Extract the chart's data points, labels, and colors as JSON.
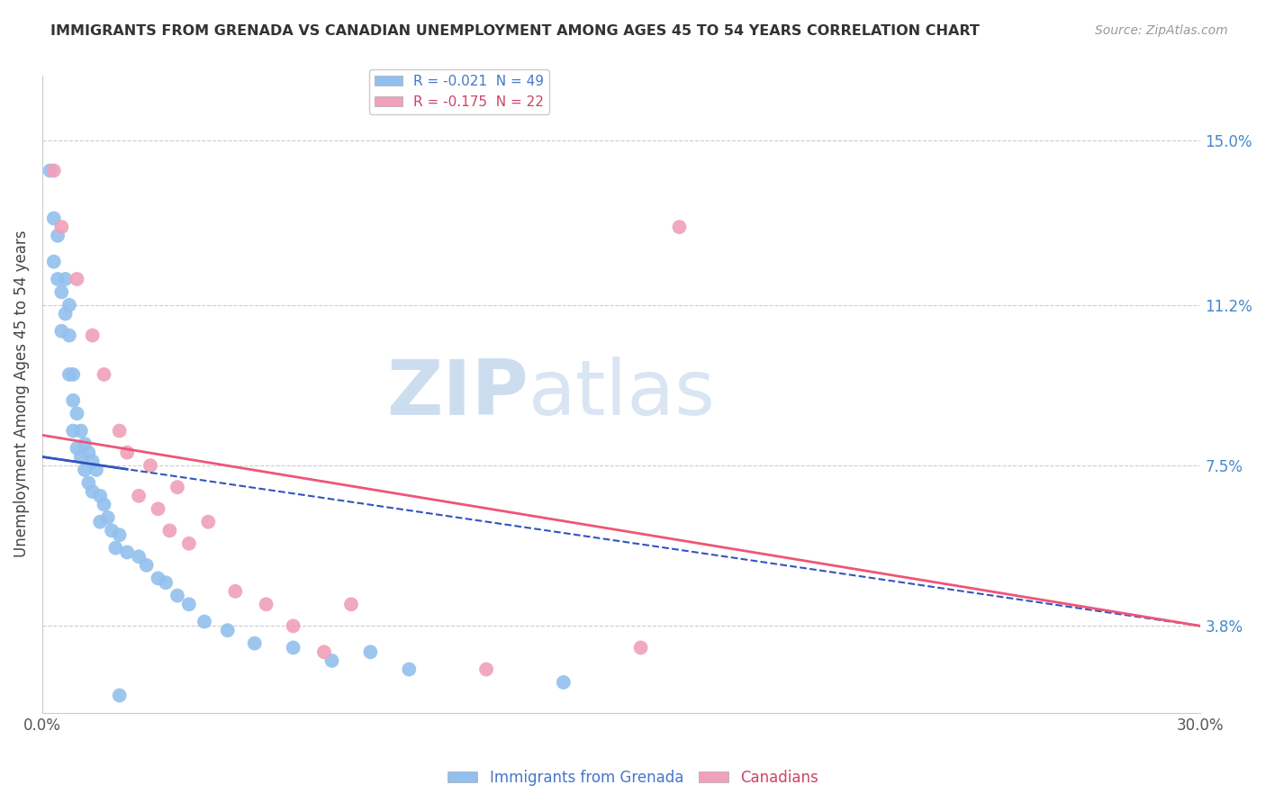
{
  "title": "IMMIGRANTS FROM GRENADA VS CANADIAN UNEMPLOYMENT AMONG AGES 45 TO 54 YEARS CORRELATION CHART",
  "source": "Source: ZipAtlas.com",
  "ylabel": "Unemployment Among Ages 45 to 54 years",
  "xlim": [
    0.0,
    0.3
  ],
  "ylim": [
    0.018,
    0.165
  ],
  "yticks": [
    0.038,
    0.075,
    0.112,
    0.15
  ],
  "ytick_labels": [
    "3.8%",
    "7.5%",
    "11.2%",
    "15.0%"
  ],
  "xticks": [
    0.0,
    0.05,
    0.1,
    0.15,
    0.2,
    0.25,
    0.3
  ],
  "xtick_labels_show": [
    "0.0%",
    "",
    "",
    "",
    "",
    "",
    "30.0%"
  ],
  "watermark_zip": "ZIP",
  "watermark_atlas": "atlas",
  "legend_label1": "R = -0.021  N = 49",
  "legend_label2": "R = -0.175  N = 22",
  "bottom_legend_label1": "Immigrants from Grenada",
  "bottom_legend_label2": "Canadians",
  "scatter_blue_color": "#92c0ee",
  "scatter_pink_color": "#f0a0b8",
  "blue_line_color": "#3355bb",
  "pink_line_color": "#ee5577",
  "background_color": "#ffffff",
  "grid_color": "#cccccc",
  "blue_scatter_x": [
    0.002,
    0.003,
    0.003,
    0.004,
    0.004,
    0.005,
    0.005,
    0.006,
    0.006,
    0.007,
    0.007,
    0.007,
    0.008,
    0.008,
    0.008,
    0.009,
    0.009,
    0.01,
    0.01,
    0.011,
    0.011,
    0.012,
    0.012,
    0.013,
    0.013,
    0.014,
    0.015,
    0.015,
    0.016,
    0.017,
    0.018,
    0.019,
    0.02,
    0.022,
    0.025,
    0.027,
    0.03,
    0.032,
    0.035,
    0.038,
    0.042,
    0.048,
    0.055,
    0.065,
    0.075,
    0.085,
    0.095,
    0.135,
    0.02
  ],
  "blue_scatter_y": [
    0.143,
    0.132,
    0.122,
    0.128,
    0.118,
    0.115,
    0.106,
    0.118,
    0.11,
    0.112,
    0.105,
    0.096,
    0.096,
    0.09,
    0.083,
    0.087,
    0.079,
    0.083,
    0.077,
    0.08,
    0.074,
    0.078,
    0.071,
    0.076,
    0.069,
    0.074,
    0.068,
    0.062,
    0.066,
    0.063,
    0.06,
    0.056,
    0.059,
    0.055,
    0.054,
    0.052,
    0.049,
    0.048,
    0.045,
    0.043,
    0.039,
    0.037,
    0.034,
    0.033,
    0.03,
    0.032,
    0.028,
    0.025,
    0.022
  ],
  "pink_scatter_x": [
    0.003,
    0.005,
    0.009,
    0.013,
    0.016,
    0.02,
    0.022,
    0.025,
    0.028,
    0.03,
    0.033,
    0.035,
    0.038,
    0.043,
    0.05,
    0.058,
    0.065,
    0.073,
    0.08,
    0.115,
    0.155,
    0.165
  ],
  "pink_scatter_y": [
    0.143,
    0.13,
    0.118,
    0.105,
    0.096,
    0.083,
    0.078,
    0.068,
    0.075,
    0.065,
    0.06,
    0.07,
    0.057,
    0.062,
    0.046,
    0.043,
    0.038,
    0.032,
    0.043,
    0.028,
    0.033,
    0.13
  ],
  "blue_line_x_start": 0.0,
  "blue_line_x_end": 0.3,
  "blue_line_y_start": 0.077,
  "blue_line_y_end": 0.038,
  "pink_line_x_start": 0.0,
  "pink_line_x_end": 0.3,
  "pink_line_y_start": 0.082,
  "pink_line_y_end": 0.038
}
